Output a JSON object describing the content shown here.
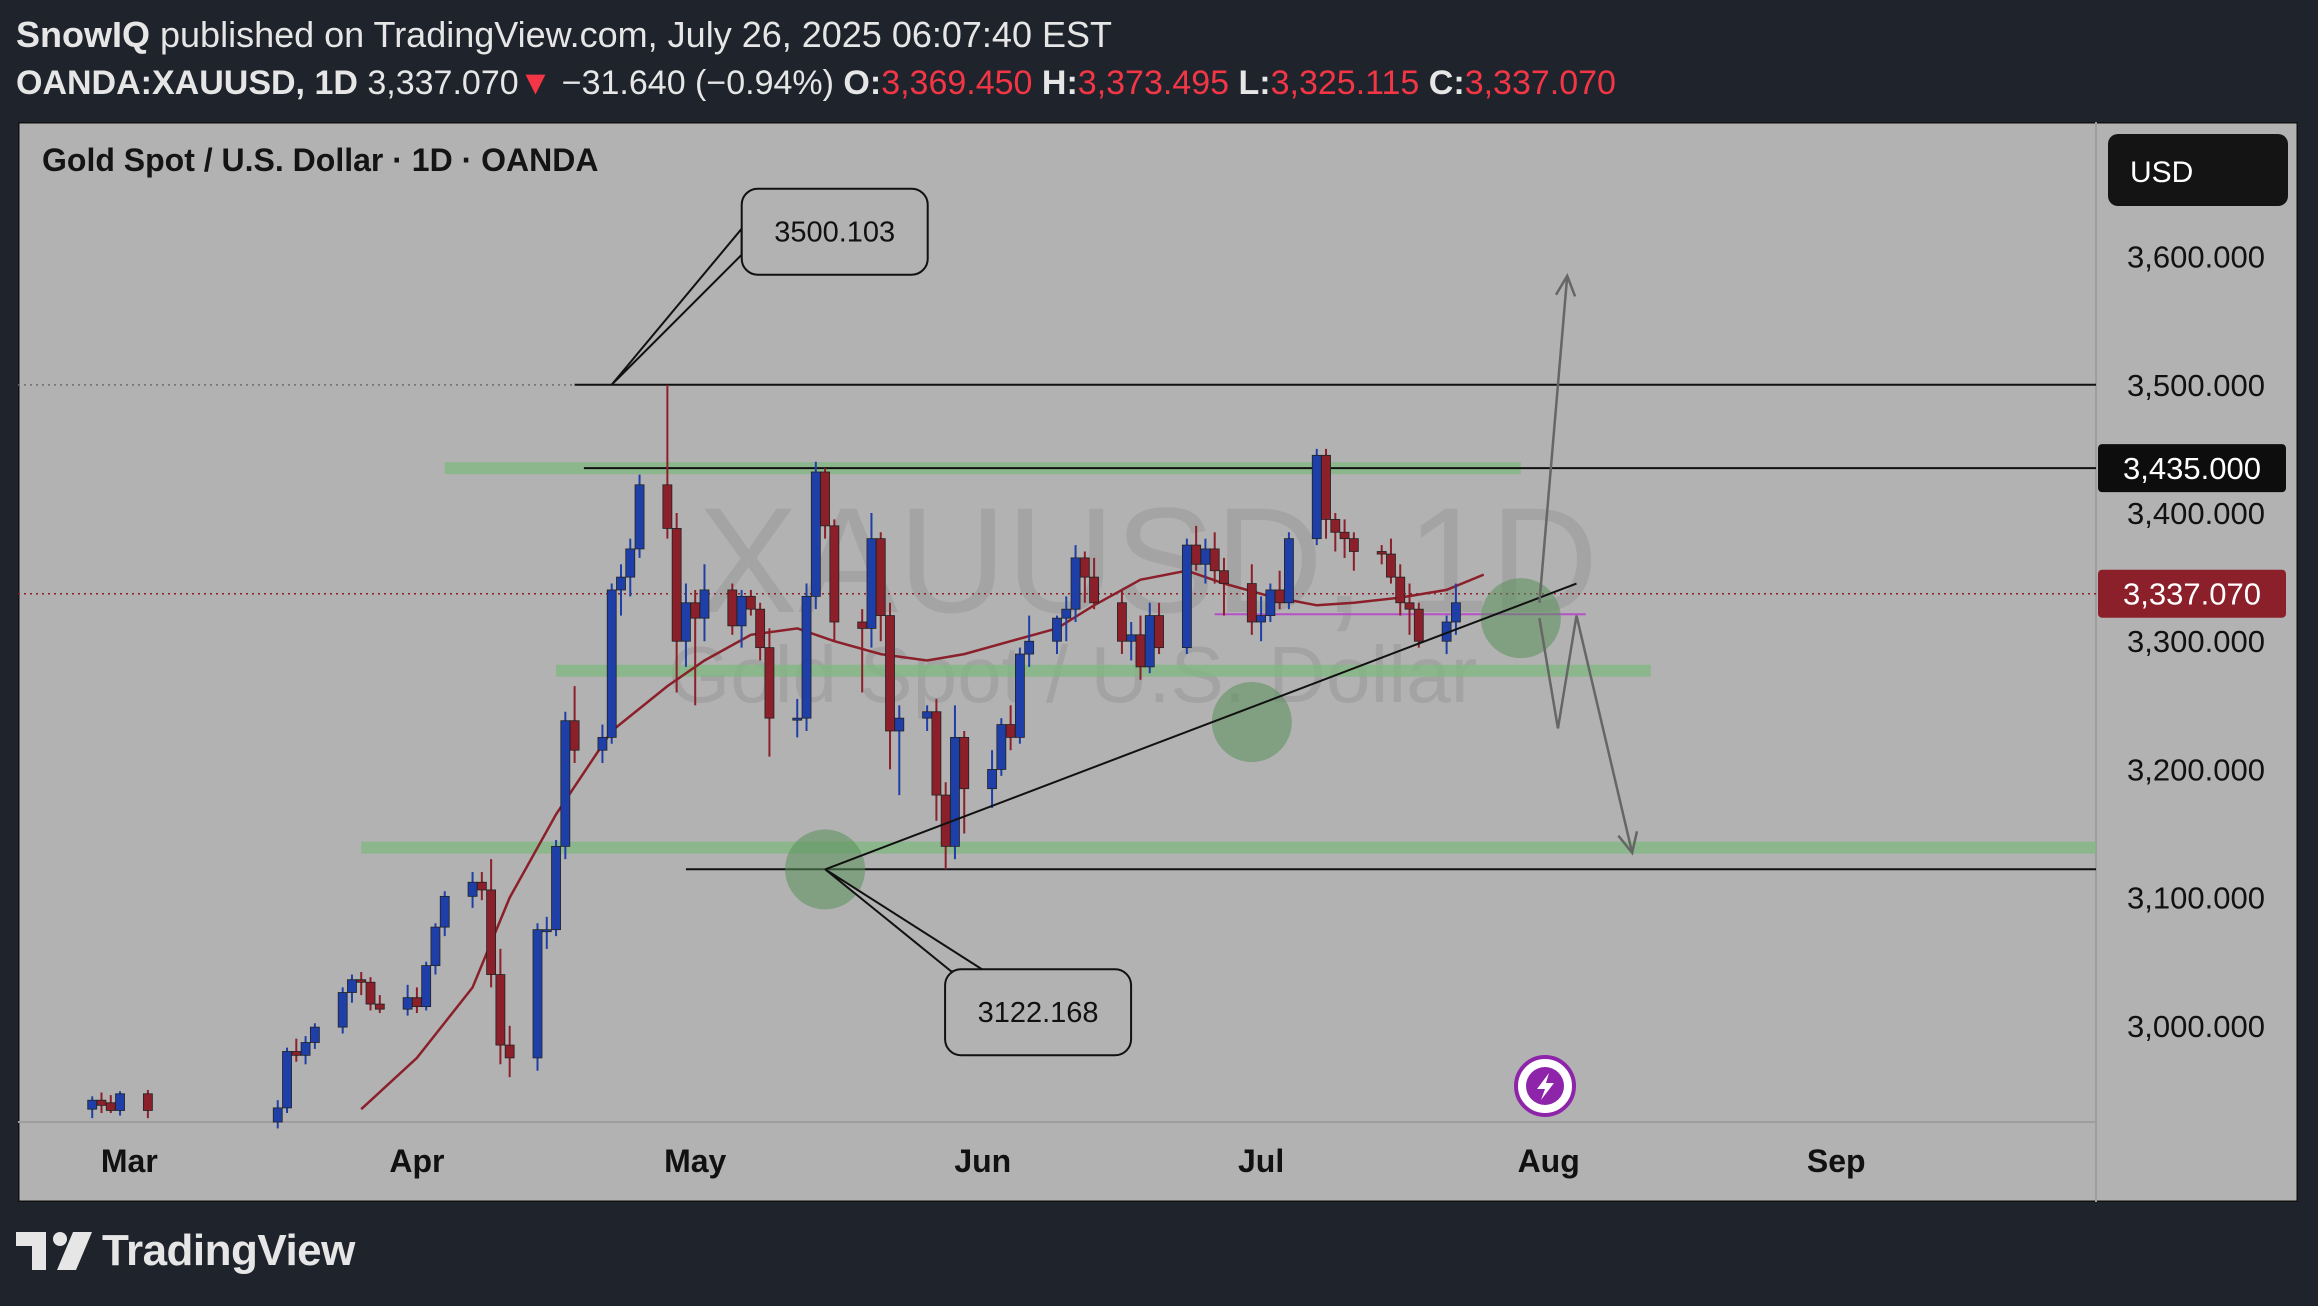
{
  "header": {
    "author": "SnowIQ",
    "published_text": "published on TradingView.com, July 26, 2025 06:07:40 EST",
    "symbol_interval": "OANDA:XAUUSD, 1D",
    "last_price": "3,337.070",
    "change_arrow": "▼",
    "change": "−31.640 (−0.94%)",
    "o_label": "O:",
    "o_value": "3,369.450",
    "h_label": "H:",
    "h_value": "3,373.495",
    "l_label": "L:",
    "l_value": "3,325.115",
    "c_label": "C:",
    "c_value": "3,337.070"
  },
  "footer": {
    "brand": "TradingView",
    "logo_icon": "tradingview-logo-icon"
  },
  "colors": {
    "background": "#1f232b",
    "plot_background": "#b2b2b2",
    "bull": "#1f3fa8",
    "bear": "#8b1f2a",
    "ma": "#8b1f2a",
    "zone": "#7fb87f",
    "price_label": "#8b1f2a",
    "currency_box": "#141414",
    "flash_icon": "#8e24aa"
  },
  "chart_data": {
    "type": "candlestick",
    "title": "Gold Spot / U.S. Dollar · 1D · OANDA",
    "watermark_symbol": "XAUUSD, 1D",
    "watermark_name": "Gold Spot / U.S. Dollar",
    "currency": "USD",
    "y_ticks": [
      "3,600.000",
      "3,500.000",
      "3,400.000",
      "3,300.000",
      "3,200.000",
      "3,100.000",
      "3,000.000"
    ],
    "y_tick_values": [
      3600,
      3500,
      3400,
      3300,
      3200,
      3100,
      3000
    ],
    "ylim": [
      2925,
      3705
    ],
    "x_labels": [
      "Mar",
      "Apr",
      "May",
      "Jun",
      "Jul",
      "Aug",
      "Sep"
    ],
    "x_label_dates": [
      "2025-03-01",
      "2025-04-01",
      "2025-05-01",
      "2025-06-01",
      "2025-07-01",
      "2025-08-01",
      "2025-09-01"
    ],
    "xlim": [
      "2025-02-17",
      "2025-09-29"
    ],
    "price_labels": [
      {
        "text": "3,435.000",
        "value": 3435,
        "style": "black"
      },
      {
        "text": "3,337.070",
        "value": 3337.07,
        "style": "red"
      }
    ],
    "annotations": [
      {
        "text": "3500.103",
        "value": 3500.103,
        "date": "2025-04-22"
      },
      {
        "text": "3122.168",
        "value": 3122.168,
        "date": "2025-05-15"
      }
    ],
    "horizontal_levels": [
      {
        "value": 3500.103,
        "from": "2025-04-18",
        "to": "2025-09-29",
        "kind": "line"
      },
      {
        "value": 3435,
        "from": "2025-04-19",
        "to": "2025-09-29",
        "kind": "line"
      },
      {
        "value": 3122.168,
        "from": "2025-04-30",
        "to": "2025-09-29",
        "kind": "line"
      },
      {
        "value": 3337,
        "from": "2025-02-17",
        "to": "2025-09-29",
        "kind": "dotted"
      },
      {
        "value": 3500,
        "from": "2025-02-17",
        "to": "2025-04-18",
        "kind": "dotted"
      },
      {
        "value": 3321,
        "from": "2025-06-26",
        "to": "2025-08-05",
        "kind": "purple"
      }
    ],
    "zones": [
      {
        "value": 3435,
        "from": "2025-04-04",
        "to": "2025-07-29"
      },
      {
        "value": 3277,
        "from": "2025-04-16",
        "to": "2025-08-12"
      },
      {
        "value": 3139,
        "from": "2025-03-26",
        "to": "2025-09-29"
      }
    ],
    "trendline": {
      "from": [
        "2025-05-15",
        3122
      ],
      "to": [
        "2025-08-04",
        3345
      ]
    },
    "circles": [
      {
        "date": "2025-05-15",
        "value": 3122
      },
      {
        "date": "2025-06-30",
        "value": 3237
      },
      {
        "date": "2025-07-29",
        "value": 3318
      }
    ],
    "projection_up": [
      [
        "2025-07-31",
        3330
      ],
      [
        "2025-08-03",
        3585
      ]
    ],
    "projection_down": [
      [
        "2025-07-31",
        3318
      ],
      [
        "2025-08-02",
        3232
      ],
      [
        "2025-08-04",
        3320
      ],
      [
        "2025-08-10",
        3135
      ]
    ],
    "moving_average": [
      [
        "2025-03-26",
        2935
      ],
      [
        "2025-04-01",
        2975
      ],
      [
        "2025-04-07",
        3030
      ],
      [
        "2025-04-11",
        3100
      ],
      [
        "2025-04-16",
        3165
      ],
      [
        "2025-04-22",
        3230
      ],
      [
        "2025-04-28",
        3265
      ],
      [
        "2025-05-02",
        3285
      ],
      [
        "2025-05-07",
        3305
      ],
      [
        "2025-05-12",
        3310
      ],
      [
        "2025-05-16",
        3300
      ],
      [
        "2025-05-21",
        3290
      ],
      [
        "2025-05-26",
        3285
      ],
      [
        "2025-05-30",
        3290
      ],
      [
        "2025-06-04",
        3300
      ],
      [
        "2025-06-09",
        3310
      ],
      [
        "2025-06-13",
        3328
      ],
      [
        "2025-06-18",
        3348
      ],
      [
        "2025-06-23",
        3355
      ],
      [
        "2025-06-27",
        3345
      ],
      [
        "2025-07-02",
        3335
      ],
      [
        "2025-07-07",
        3328
      ],
      [
        "2025-07-11",
        3330
      ],
      [
        "2025-07-16",
        3334
      ],
      [
        "2025-07-21",
        3340
      ],
      [
        "2025-07-25",
        3352
      ]
    ],
    "candles": [
      [
        "2025-02-25",
        2935,
        2945,
        2928,
        2942
      ],
      [
        "2025-02-26",
        2942,
        2948,
        2932,
        2938
      ],
      [
        "2025-02-27",
        2940,
        2946,
        2932,
        2934
      ],
      [
        "2025-02-28",
        2934,
        2949,
        2930,
        2947
      ],
      [
        "2025-03-03",
        2947,
        2950,
        2928,
        2934
      ],
      [
        "2025-03-17",
        2925,
        2942,
        2920,
        2936
      ],
      [
        "2025-03-18",
        2936,
        2983,
        2932,
        2980
      ],
      [
        "2025-03-19",
        2980,
        2990,
        2972,
        2977
      ],
      [
        "2025-03-20",
        2977,
        2992,
        2970,
        2987
      ],
      [
        "2025-03-21",
        2987,
        3002,
        2982,
        2999
      ],
      [
        "2025-03-24",
        2999,
        3030,
        2994,
        3026
      ],
      [
        "2025-03-25",
        3026,
        3040,
        3018,
        3036
      ],
      [
        "2025-03-26",
        3036,
        3042,
        3024,
        3034
      ],
      [
        "2025-03-27",
        3034,
        3038,
        3012,
        3017
      ],
      [
        "2025-03-28",
        3017,
        3024,
        3010,
        3013
      ],
      [
        "2025-03-31",
        3013,
        3032,
        3008,
        3022
      ],
      [
        "2025-04-01",
        3022,
        3030,
        3010,
        3015
      ],
      [
        "2025-04-02",
        3015,
        3050,
        3012,
        3047
      ],
      [
        "2025-04-03",
        3047,
        3080,
        3040,
        3077
      ],
      [
        "2025-04-04",
        3077,
        3105,
        3070,
        3101
      ],
      [
        "2025-04-07",
        3101,
        3120,
        3092,
        3112
      ],
      [
        "2025-04-08",
        3112,
        3120,
        3098,
        3106
      ],
      [
        "2025-04-09",
        3106,
        3130,
        3030,
        3040
      ],
      [
        "2025-04-10",
        3040,
        3060,
        2970,
        2985
      ],
      [
        "2025-04-11",
        2985,
        3000,
        2960,
        2975
      ],
      [
        "2025-04-14",
        2975,
        3080,
        2965,
        3075
      ],
      [
        "2025-04-15",
        3075,
        3085,
        3060,
        3075
      ],
      [
        "2025-04-16",
        3075,
        3145,
        3070,
        3140
      ],
      [
        "2025-04-17",
        3140,
        3245,
        3130,
        3238
      ],
      [
        "2025-04-18",
        3238,
        3265,
        3205,
        3215
      ],
      [
        "2025-04-21",
        3215,
        3235,
        3205,
        3225
      ],
      [
        "2025-04-22",
        3225,
        3345,
        3220,
        3340
      ],
      [
        "2025-04-23",
        3340,
        3360,
        3320,
        3350
      ],
      [
        "2025-04-24",
        3350,
        3380,
        3335,
        3372
      ],
      [
        "2025-04-25",
        3372,
        3430,
        3365,
        3422
      ],
      [
        "2025-04-28",
        3422,
        3500,
        3380,
        3388
      ],
      [
        "2025-04-29",
        3388,
        3400,
        3260,
        3300
      ],
      [
        "2025-04-30",
        3300,
        3345,
        3280,
        3330
      ],
      [
        "2025-05-01",
        3330,
        3340,
        3250,
        3318
      ],
      [
        "2025-05-02",
        3318,
        3360,
        3300,
        3340
      ],
      [
        "2025-05-05",
        3340,
        3345,
        3305,
        3312
      ],
      [
        "2025-05-06",
        3312,
        3340,
        3295,
        3335
      ],
      [
        "2025-05-07",
        3335,
        3340,
        3320,
        3325
      ],
      [
        "2025-05-08",
        3325,
        3330,
        3285,
        3295
      ],
      [
        "2025-05-09",
        3295,
        3310,
        3210,
        3240
      ],
      [
        "2025-05-12",
        3240,
        3255,
        3225,
        3240
      ],
      [
        "2025-05-13",
        3240,
        3345,
        3230,
        3335
      ],
      [
        "2025-05-14",
        3335,
        3440,
        3325,
        3432
      ],
      [
        "2025-05-15",
        3432,
        3435,
        3380,
        3390
      ],
      [
        "2025-05-16",
        3390,
        3395,
        3300,
        3315
      ],
      [
        "2025-05-19",
        3315,
        3325,
        3260,
        3310
      ],
      [
        "2025-05-20",
        3310,
        3400,
        3295,
        3380
      ],
      [
        "2025-05-21",
        3380,
        3385,
        3300,
        3320
      ],
      [
        "2025-05-22",
        3320,
        3330,
        3200,
        3230
      ],
      [
        "2025-05-23",
        3230,
        3250,
        3180,
        3240
      ],
      [
        "2025-05-26",
        3240,
        3250,
        3230,
        3245
      ],
      [
        "2025-05-27",
        3245,
        3255,
        3160,
        3180
      ],
      [
        "2025-05-28",
        3180,
        3190,
        3122,
        3140
      ],
      [
        "2025-05-29",
        3140,
        3250,
        3130,
        3225
      ],
      [
        "2025-05-30",
        3225,
        3230,
        3150,
        3185
      ],
      [
        "2025-06-02",
        3185,
        3215,
        3170,
        3200
      ],
      [
        "2025-06-03",
        3200,
        3240,
        3195,
        3235
      ],
      [
        "2025-06-04",
        3235,
        3250,
        3215,
        3225
      ],
      [
        "2025-06-05",
        3225,
        3295,
        3220,
        3290
      ],
      [
        "2025-06-06",
        3290,
        3320,
        3280,
        3300
      ],
      [
        "2025-06-09",
        3300,
        3320,
        3290,
        3318
      ],
      [
        "2025-06-10",
        3318,
        3335,
        3300,
        3325
      ],
      [
        "2025-06-11",
        3325,
        3375,
        3315,
        3365
      ],
      [
        "2025-06-12",
        3365,
        3370,
        3330,
        3350
      ],
      [
        "2025-06-13",
        3350,
        3365,
        3325,
        3330
      ],
      [
        "2025-06-16",
        3330,
        3340,
        3290,
        3300
      ],
      [
        "2025-06-17",
        3300,
        3315,
        3285,
        3305
      ],
      [
        "2025-06-18",
        3305,
        3320,
        3270,
        3280
      ],
      [
        "2025-06-19",
        3280,
        3330,
        3275,
        3320
      ],
      [
        "2025-06-20",
        3320,
        3330,
        3290,
        3295
      ],
      [
        "2025-06-23",
        3295,
        3380,
        3290,
        3375
      ],
      [
        "2025-06-24",
        3375,
        3390,
        3355,
        3360
      ],
      [
        "2025-06-25",
        3360,
        3380,
        3345,
        3372
      ],
      [
        "2025-06-26",
        3372,
        3385,
        3345,
        3355
      ],
      [
        "2025-06-27",
        3355,
        3365,
        3320,
        3345
      ],
      [
        "2025-06-30",
        3345,
        3360,
        3305,
        3315
      ],
      [
        "2025-07-01",
        3315,
        3335,
        3300,
        3320
      ],
      [
        "2025-07-02",
        3320,
        3345,
        3315,
        3340
      ],
      [
        "2025-07-03",
        3340,
        3355,
        3325,
        3330
      ],
      [
        "2025-07-04",
        3330,
        3385,
        3325,
        3380
      ],
      [
        "2025-07-07",
        3380,
        3450,
        3375,
        3445
      ],
      [
        "2025-07-08",
        3445,
        3450,
        3380,
        3395
      ],
      [
        "2025-07-09",
        3395,
        3400,
        3370,
        3385
      ],
      [
        "2025-07-10",
        3385,
        3395,
        3365,
        3380
      ],
      [
        "2025-07-11",
        3380,
        3385,
        3355,
        3370
      ],
      [
        "2025-07-14",
        3370,
        3375,
        3360,
        3368
      ],
      [
        "2025-07-15",
        3368,
        3380,
        3345,
        3350
      ],
      [
        "2025-07-16",
        3350,
        3360,
        3320,
        3330
      ],
      [
        "2025-07-17",
        3330,
        3345,
        3305,
        3325
      ],
      [
        "2025-07-18",
        3325,
        3330,
        3295,
        3300
      ],
      [
        "2025-07-21",
        3300,
        3320,
        3290,
        3315
      ],
      [
        "2025-07-22",
        3315,
        3345,
        3305,
        3330
      ]
    ]
  }
}
